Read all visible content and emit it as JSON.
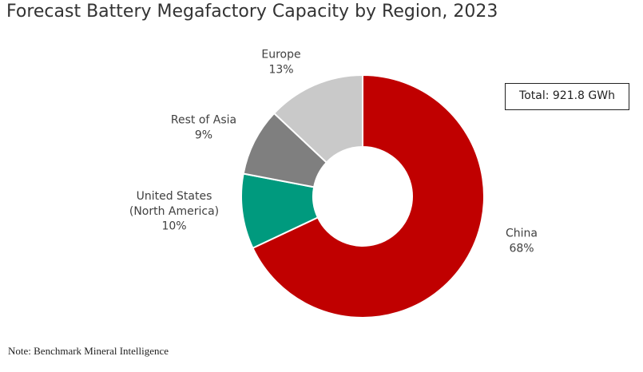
{
  "chart_data": {
    "type": "donut",
    "title": "Forecast Battery Megafactory Capacity by Region, 2023",
    "categories": [
      "China",
      "United States\n(North America)",
      "Rest of Asia",
      "Europe"
    ],
    "values": [
      68,
      10,
      9,
      13
    ],
    "value_labels": [
      "68%",
      "10%",
      "9%",
      "13%"
    ],
    "colors": [
      "#c00000",
      "#009a7e",
      "#7f7f7f",
      "#c9c9c9"
    ],
    "annotation": "Total: 921.8 GWh",
    "note": "Note: Benchmark Mineral Intelligence"
  }
}
